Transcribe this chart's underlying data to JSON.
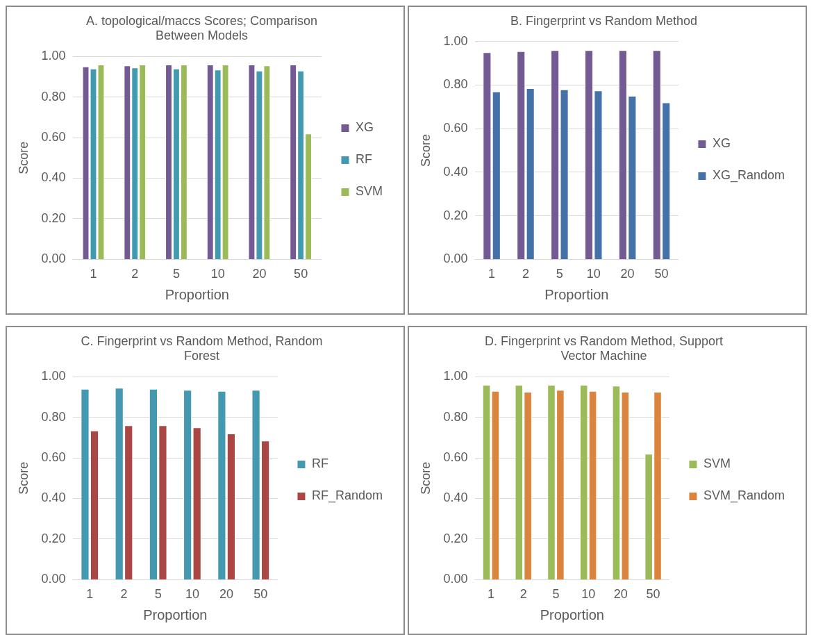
{
  "chart_data": [
    {
      "type": "bar",
      "title": "A. topological/maccs Scores; Comparison Between Models",
      "xlabel": "Proportion",
      "ylabel": "Score",
      "categories": [
        "1",
        "2",
        "5",
        "10",
        "20",
        "50"
      ],
      "series": [
        {
          "name": "XG",
          "color": "#735a92",
          "values": [
            0.95,
            0.955,
            0.96,
            0.96,
            0.96,
            0.96
          ]
        },
        {
          "name": "RF",
          "color": "#4299b0",
          "values": [
            0.94,
            0.945,
            0.94,
            0.935,
            0.93,
            0.93
          ]
        },
        {
          "name": "SVM",
          "color": "#9bbb59",
          "values": [
            0.96,
            0.96,
            0.96,
            0.96,
            0.955,
            0.62
          ]
        }
      ],
      "ylim": [
        0,
        1
      ],
      "yticks": [
        {
          "value": 0,
          "label": "0.00"
        },
        {
          "value": 0.2,
          "label": "0.20"
        },
        {
          "value": 0.4,
          "label": "0.40"
        },
        {
          "value": 0.6,
          "label": "0.60"
        },
        {
          "value": 0.8,
          "label": "0.80"
        },
        {
          "value": 1,
          "label": "1.00"
        }
      ],
      "grid": "y",
      "legend": "right"
    },
    {
      "type": "bar",
      "title": "B. Fingerprint vs Random Method",
      "xlabel": "Proportion",
      "ylabel": "Score",
      "categories": [
        "1",
        "2",
        "5",
        "10",
        "20",
        "50"
      ],
      "series": [
        {
          "name": "XG",
          "color": "#735a92",
          "values": [
            0.95,
            0.955,
            0.96,
            0.96,
            0.96,
            0.96
          ]
        },
        {
          "name": "XG_Random",
          "color": "#4472a8",
          "values": [
            0.77,
            0.785,
            0.78,
            0.775,
            0.75,
            0.72
          ]
        }
      ],
      "ylim": [
        0,
        1
      ],
      "yticks": [
        {
          "value": 0,
          "label": "0.00"
        },
        {
          "value": 0.2,
          "label": "0.20"
        },
        {
          "value": 0.4,
          "label": "0.40"
        },
        {
          "value": 0.6,
          "label": "0.60"
        },
        {
          "value": 0.8,
          "label": "0.80"
        },
        {
          "value": 1,
          "label": "1.00"
        }
      ],
      "grid": "y",
      "legend": "right"
    },
    {
      "type": "bar",
      "title": "C. Fingerprint vs Random Method, Random Forest",
      "xlabel": "Proportion",
      "ylabel": "Score",
      "categories": [
        "1",
        "2",
        "5",
        "10",
        "20",
        "50"
      ],
      "series": [
        {
          "name": "RF",
          "color": "#4299b0",
          "values": [
            0.94,
            0.945,
            0.94,
            0.935,
            0.93,
            0.935
          ]
        },
        {
          "name": "RF_Random",
          "color": "#aa4644",
          "values": [
            0.735,
            0.76,
            0.76,
            0.75,
            0.72,
            0.685
          ]
        }
      ],
      "ylim": [
        0,
        1
      ],
      "yticks": [
        {
          "value": 0,
          "label": "0.00"
        },
        {
          "value": 0.2,
          "label": "0.20"
        },
        {
          "value": 0.4,
          "label": "0.40"
        },
        {
          "value": 0.6,
          "label": "0.60"
        },
        {
          "value": 0.8,
          "label": "0.80"
        },
        {
          "value": 1,
          "label": "1.00"
        }
      ],
      "grid": "y",
      "legend": "right"
    },
    {
      "type": "bar",
      "title": "D. Fingerprint vs Random Method, Support Vector Machine",
      "xlabel": "Proportion",
      "ylabel": "Score",
      "categories": [
        "1",
        "2",
        "5",
        "10",
        "20",
        "50"
      ],
      "series": [
        {
          "name": "SVM",
          "color": "#9bbb59",
          "values": [
            0.96,
            0.96,
            0.96,
            0.96,
            0.955,
            0.62
          ]
        },
        {
          "name": "SVM_Random",
          "color": "#db843d",
          "values": [
            0.93,
            0.925,
            0.935,
            0.93,
            0.925,
            0.925
          ]
        }
      ],
      "ylim": [
        0,
        1
      ],
      "yticks": [
        {
          "value": 0,
          "label": "0.00"
        },
        {
          "value": 0.2,
          "label": "0.20"
        },
        {
          "value": 0.4,
          "label": "0.40"
        },
        {
          "value": 0.6,
          "label": "0.60"
        },
        {
          "value": 0.8,
          "label": "0.80"
        },
        {
          "value": 1,
          "label": "1.00"
        }
      ],
      "grid": "y",
      "legend": "right"
    }
  ]
}
